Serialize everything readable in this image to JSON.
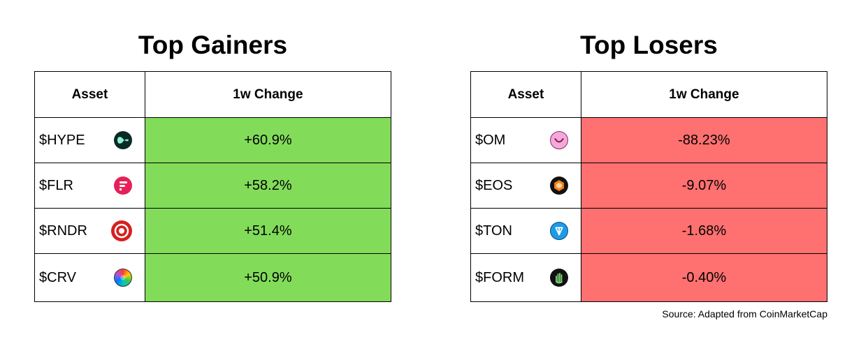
{
  "chart_data": [
    {
      "type": "table",
      "title": "Top Gainers",
      "columns": [
        "Asset",
        "1w Change"
      ],
      "rows": [
        {
          "asset": "$HYPE",
          "change": "+60.9%",
          "value": 60.9,
          "icon": "hype-icon"
        },
        {
          "asset": "$FLR",
          "change": "+58.2%",
          "value": 58.2,
          "icon": "flr-icon"
        },
        {
          "asset": "$RNDR",
          "change": "+51.4%",
          "value": 51.4,
          "icon": "rndr-icon"
        },
        {
          "asset": "$CRV",
          "change": "+50.9%",
          "value": 50.9,
          "icon": "crv-icon"
        }
      ],
      "cell_color": "#82dc5a"
    },
    {
      "type": "table",
      "title": "Top Losers",
      "columns": [
        "Asset",
        "1w Change"
      ],
      "rows": [
        {
          "asset": "$OM",
          "change": "-88.23%",
          "value": -88.23,
          "icon": "om-icon"
        },
        {
          "asset": "$EOS",
          "change": "-9.07%",
          "value": -9.07,
          "icon": "eos-icon"
        },
        {
          "asset": "$TON",
          "change": "-1.68%",
          "value": -1.68,
          "icon": "ton-icon"
        },
        {
          "asset": "$FORM",
          "change": "-0.40%",
          "value": -0.4,
          "icon": "form-icon"
        }
      ],
      "cell_color": "#ff7070"
    }
  ],
  "source": "Source: Adapted from CoinMarketCap"
}
